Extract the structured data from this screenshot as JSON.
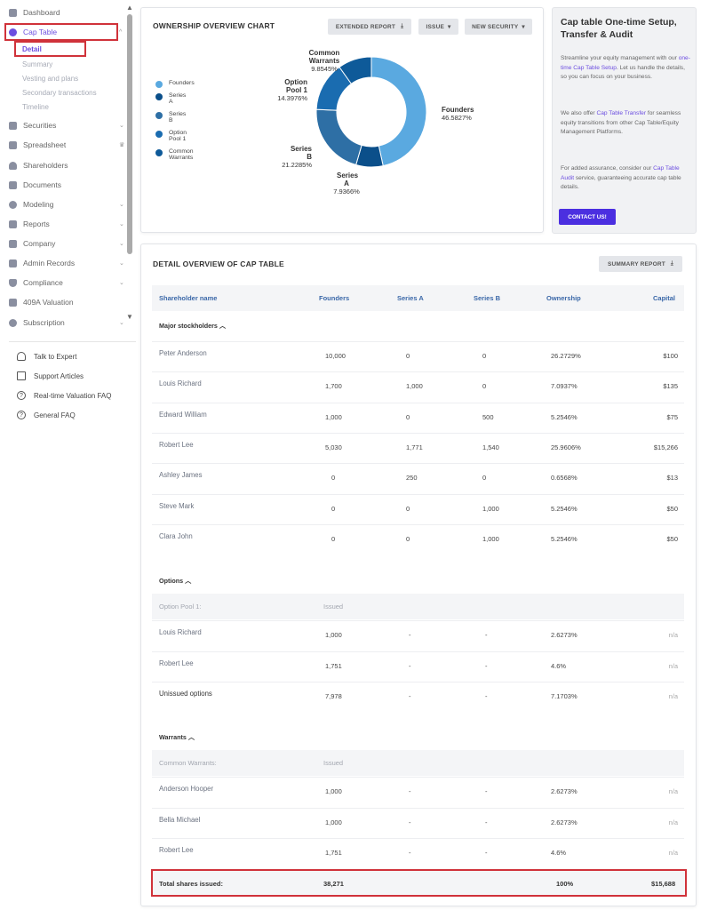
{
  "sidebar": {
    "items": [
      {
        "label": "Dashboard"
      },
      {
        "label": "Cap Table"
      },
      {
        "label": "Securities"
      },
      {
        "label": "Spreadsheet"
      },
      {
        "label": "Shareholders"
      },
      {
        "label": "Documents"
      },
      {
        "label": "Modeling"
      },
      {
        "label": "Reports"
      },
      {
        "label": "Company"
      },
      {
        "label": "Admin Records"
      },
      {
        "label": "Compliance"
      },
      {
        "label": "409A Valuation"
      },
      {
        "label": "Subscription"
      }
    ],
    "sub_items": [
      "Detail",
      "Summary",
      "Vesting and plans",
      "Secondary transactions",
      "Timeline"
    ],
    "help": [
      "Talk to Expert",
      "Support Articles",
      "Real-time Valuation FAQ",
      "General FAQ"
    ]
  },
  "chart_card": {
    "title": "OWNERSHIP OVERVIEW CHART",
    "buttons": {
      "extended_report": "EXTENDED REPORT",
      "issue": "ISSUE",
      "new_security": "NEW SECURITY"
    },
    "legend": [
      "Founders",
      "Series A",
      "Series B",
      "Option Pool 1",
      "Common Warrants"
    ]
  },
  "chart_data": {
    "type": "pie",
    "title": "OWNERSHIP OVERVIEW CHART",
    "categories": [
      "Founders",
      "Series A",
      "Series B",
      "Option Pool 1",
      "Common Warrants"
    ],
    "values": [
      46.5827,
      7.9366,
      21.2285,
      14.3976,
      9.8545
    ],
    "labels": [
      "46.5827%",
      "7.9366%",
      "21.2285%",
      "14.3976%",
      "9.8545%"
    ],
    "colors": [
      "#5aa9e0",
      "#0b4f8a",
      "#2e6fa5",
      "#1a6cb0",
      "#0e5a99"
    ],
    "legend_position": "left"
  },
  "side_card": {
    "title": "Cap table One-time Setup, Transfer & Audit",
    "p1_a": "Streamline your equity management with our ",
    "p1_link": "one-time Cap Table Setup",
    "p1_b": ". Let us handle the details, so you can focus on your business.",
    "p2_a": "We also offer ",
    "p2_link": "Cap Table Transfer",
    "p2_b": " for seamless equity transitions from other Cap Table/Equity Management Platforms.",
    "p3_a": "For added assurance, consider our ",
    "p3_link": "Cap Table Audit",
    "p3_b": " service, guaranteeing accurate cap table details.",
    "button": "CONTACT US!"
  },
  "table_card": {
    "title": "DETAIL OVERVIEW OF CAP TABLE",
    "summary_button": "SUMMARY REPORT",
    "columns": [
      "Shareholder name",
      "Founders",
      "Series A",
      "Series B",
      "Ownership",
      "Capital"
    ],
    "major_label": "Major stockholders",
    "major_rows": [
      [
        "Peter Anderson",
        "10,000",
        "0",
        "0",
        "26.2729%",
        "$100"
      ],
      [
        "Louis Richard",
        "1,700",
        "1,000",
        "0",
        "7.0937%",
        "$135"
      ],
      [
        "Edward William",
        "1,000",
        "0",
        "500",
        "5.2546%",
        "$75"
      ],
      [
        "Robert Lee",
        "5,030",
        "1,771",
        "1,540",
        "25.9606%",
        "$15,266"
      ],
      [
        "Ashley James",
        "0",
        "250",
        "0",
        "0.6568%",
        "$13"
      ],
      [
        "Steve Mark",
        "0",
        "0",
        "1,000",
        "5.2546%",
        "$50"
      ],
      [
        "Clara John",
        "0",
        "0",
        "1,000",
        "5.2546%",
        "$50"
      ]
    ],
    "options_label": "Options",
    "options_sub": [
      "Option Pool 1:",
      "Issued"
    ],
    "options_rows": [
      [
        "Louis Richard",
        "1,000",
        "-",
        "-",
        "2.6273%",
        "n/a"
      ],
      [
        "Robert Lee",
        "1,751",
        "-",
        "-",
        "4.6%",
        "n/a"
      ],
      [
        "Unissued options",
        "7,978",
        "-",
        "-",
        "7.1703%",
        "n/a"
      ]
    ],
    "warrants_label": "Warrants",
    "warrants_sub": [
      "Common Warrants:",
      "Issued"
    ],
    "warrants_rows": [
      [
        "Anderson Hooper",
        "1,000",
        "-",
        "-",
        "2.6273%",
        "n/a"
      ],
      [
        "Bella Michael",
        "1,000",
        "-",
        "-",
        "2.6273%",
        "n/a"
      ],
      [
        "Robert Lee",
        "1,751",
        "-",
        "-",
        "4.6%",
        "n/a"
      ]
    ],
    "total": [
      "Total shares issued:",
      "38,271",
      "100%",
      "$15,688"
    ]
  }
}
